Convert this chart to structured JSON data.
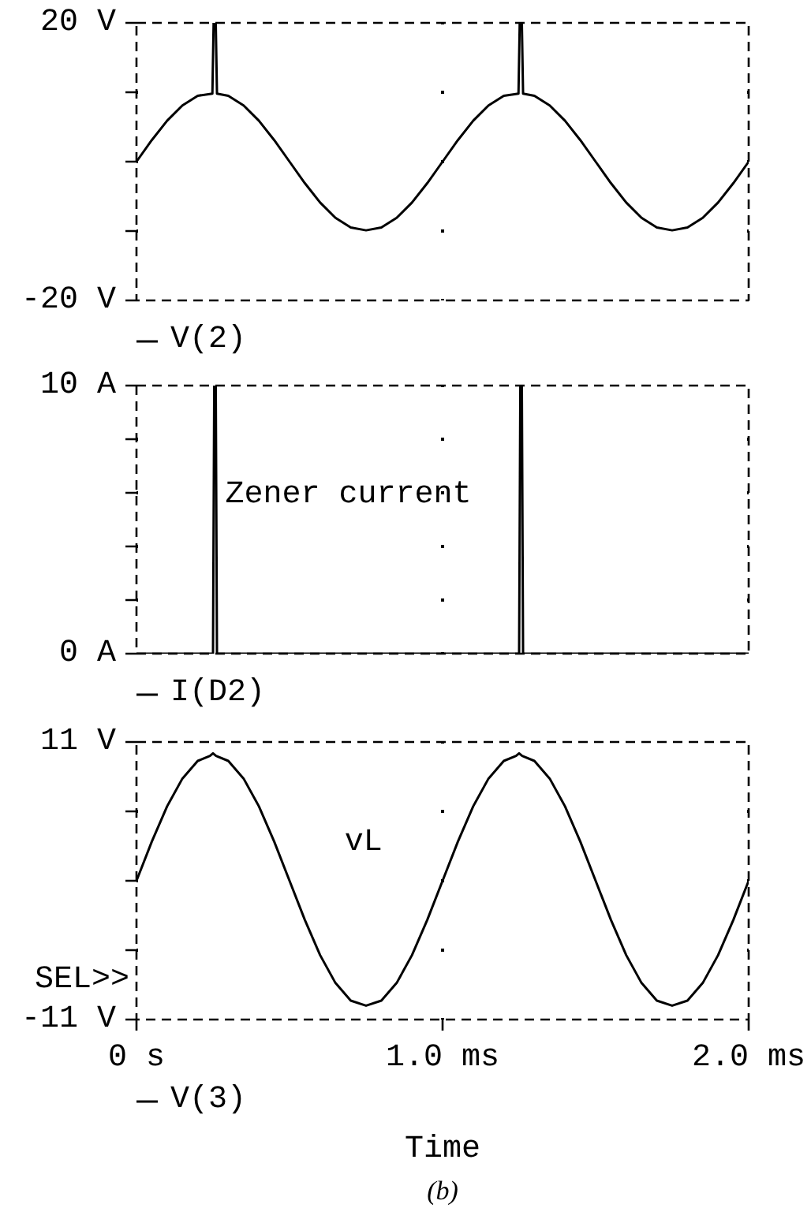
{
  "chart_data": [
    {
      "type": "line",
      "x": [
        0,
        0.05,
        0.1,
        0.15,
        0.2,
        0.248,
        0.252,
        0.259,
        0.263,
        0.3,
        0.35,
        0.4,
        0.45,
        0.5,
        0.55,
        0.6,
        0.65,
        0.7,
        0.75,
        0.8,
        0.85,
        0.9,
        0.95,
        1.0,
        1.05,
        1.1,
        1.15,
        1.2,
        1.248,
        1.252,
        1.259,
        1.263,
        1.3,
        1.35,
        1.4,
        1.45,
        1.5,
        1.55,
        1.6,
        1.65,
        1.7,
        1.75,
        1.8,
        1.85,
        1.9,
        1.95,
        2.0
      ],
      "series": [
        {
          "name": "V(2)",
          "color": "#000000",
          "values": [
            0,
            3.1,
            5.9,
            8.1,
            9.5,
            9.8,
            20,
            20,
            9.8,
            9.5,
            8.1,
            5.9,
            3.1,
            0,
            -3.1,
            -5.9,
            -8.1,
            -9.5,
            -9.9,
            -9.5,
            -8.1,
            -5.9,
            -3.1,
            0,
            3.1,
            5.9,
            8.1,
            9.5,
            9.8,
            20,
            20,
            9.8,
            9.5,
            8.1,
            5.9,
            3.1,
            0,
            -3.1,
            -5.9,
            -8.1,
            -9.5,
            -9.9,
            -9.5,
            -8.1,
            -5.9,
            -3.1,
            0
          ]
        }
      ],
      "xlim": [
        0,
        2
      ],
      "xticks": [
        {
          "value": 0,
          "label": null
        },
        {
          "value": 1,
          "label": null
        },
        {
          "value": 2,
          "label": null
        }
      ],
      "ylim": [
        -20,
        20
      ],
      "yticks": [
        {
          "value": -20,
          "label": "-20 V"
        },
        {
          "value": -10,
          "label": null
        },
        {
          "value": 0,
          "label": null
        },
        {
          "value": 10,
          "label": null
        },
        {
          "value": 20,
          "label": "20 V"
        }
      ],
      "tick_labels": "y",
      "grid": true,
      "legend": "bottom"
    },
    {
      "type": "line",
      "x": [
        0,
        0.25,
        0.254,
        0.259,
        0.263,
        1.25,
        1.254,
        1.259,
        1.263,
        2.0
      ],
      "series": [
        {
          "name": "I(D2)",
          "color": "#000000",
          "values": [
            0,
            0,
            10,
            10,
            0,
            0,
            10,
            10,
            0,
            0
          ]
        }
      ],
      "xlim": [
        0,
        2
      ],
      "xticks": [
        {
          "value": 0,
          "label": null
        },
        {
          "value": 1,
          "label": null
        },
        {
          "value": 2,
          "label": null
        }
      ],
      "ylim": [
        0,
        10
      ],
      "yticks": [
        {
          "value": 0,
          "label": "0 A"
        },
        {
          "value": 2,
          "label": null
        },
        {
          "value": 4,
          "label": null
        },
        {
          "value": 6,
          "label": null
        },
        {
          "value": 8,
          "label": null
        },
        {
          "value": 10,
          "label": "10 A"
        }
      ],
      "tick_labels": "y",
      "grid": true,
      "legend": "bottom",
      "annotations": [
        {
          "text": "Zener current",
          "x": 0.29,
          "y": 5.9
        }
      ]
    },
    {
      "type": "line",
      "x": [
        0,
        0.05,
        0.1,
        0.15,
        0.2,
        0.24,
        0.25,
        0.26,
        0.3,
        0.35,
        0.4,
        0.45,
        0.5,
        0.55,
        0.6,
        0.65,
        0.7,
        0.75,
        0.8,
        0.85,
        0.9,
        0.95,
        1.0,
        1.05,
        1.1,
        1.15,
        1.2,
        1.24,
        1.25,
        1.26,
        1.3,
        1.35,
        1.4,
        1.45,
        1.5,
        1.55,
        1.6,
        1.65,
        1.7,
        1.75,
        1.8,
        1.85,
        1.9,
        1.95,
        2.0
      ],
      "series": [
        {
          "name": "V(3)",
          "color": "#000000",
          "values": [
            0,
            3.1,
            5.9,
            8.1,
            9.5,
            9.9,
            10.1,
            9.9,
            9.5,
            8.1,
            5.9,
            3.1,
            0,
            -3.1,
            -5.9,
            -8.1,
            -9.5,
            -9.9,
            -9.5,
            -8.1,
            -5.9,
            -3.1,
            0,
            3.1,
            5.9,
            8.1,
            9.5,
            9.9,
            10.1,
            9.9,
            9.5,
            8.1,
            5.9,
            3.1,
            0,
            -3.1,
            -5.9,
            -8.1,
            -9.5,
            -9.9,
            -9.5,
            -8.1,
            -5.9,
            -3.1,
            0
          ]
        }
      ],
      "xlim": [
        0,
        2
      ],
      "xticks": [
        {
          "value": 0,
          "label": "0 s"
        },
        {
          "value": 1,
          "label": "1.0 ms"
        },
        {
          "value": 2,
          "label": "2.0 ms"
        }
      ],
      "ylim": [
        -11,
        11
      ],
      "yticks": [
        {
          "value": -11,
          "label": "-11 V"
        },
        {
          "value": -5.5,
          "label": null
        },
        {
          "value": 0,
          "label": null
        },
        {
          "value": 5.5,
          "label": null
        },
        {
          "value": 11,
          "label": "11 V"
        }
      ],
      "xlabel": "Time",
      "grid": true,
      "legend": "bottom",
      "annotations": [
        "vL",
        "SEL>>",
        "(b)"
      ]
    }
  ]
}
